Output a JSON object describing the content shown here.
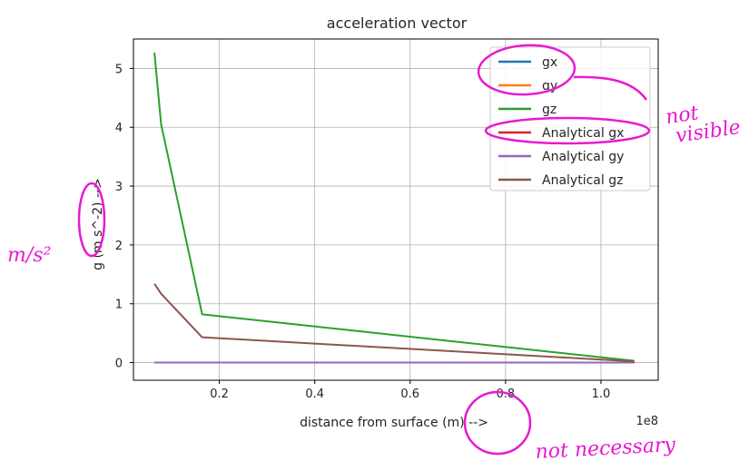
{
  "chart_data": {
    "type": "line",
    "title": "acceleration vector",
    "xlabel": "distance from surface (m) -->",
    "ylabel": "g (m s^-2) -->",
    "x_offset_label": "1e8",
    "xlim": [
      0.02,
      1.12
    ],
    "ylim": [
      -0.3,
      5.5
    ],
    "x_scale_factor": 100000000,
    "xticks": [
      0.2,
      0.4,
      0.6,
      0.8,
      1.0
    ],
    "xtick_labels": [
      "0.2",
      "0.4",
      "0.6",
      "0.8",
      "1.0"
    ],
    "yticks": [
      0,
      1,
      2,
      3,
      4,
      5
    ],
    "ytick_labels": [
      "0",
      "1",
      "2",
      "3",
      "4",
      "5"
    ],
    "grid": true,
    "legend_position": "top-right",
    "series": [
      {
        "name": "gx",
        "color": "#1f77b4",
        "x": [
          0.064,
          1.07
        ],
        "y": [
          0,
          0
        ]
      },
      {
        "name": "gy",
        "color": "#ff7f0e",
        "x": [
          0.064,
          1.07
        ],
        "y": [
          0,
          0
        ]
      },
      {
        "name": "gz",
        "color": "#2ca02c",
        "x": [
          0.064,
          0.078,
          0.164,
          1.07
        ],
        "y": [
          5.27,
          4.05,
          0.82,
          0.03
        ]
      },
      {
        "name": "Analytical gx",
        "color": "#d62728",
        "x": [
          0.064,
          1.07
        ],
        "y": [
          0,
          0
        ]
      },
      {
        "name": "Analytical gy",
        "color": "#9467bd",
        "x": [
          0.064,
          1.07
        ],
        "y": [
          0,
          0
        ]
      },
      {
        "name": "Analytical gz",
        "color": "#8c564b",
        "x": [
          0.064,
          0.078,
          0.164,
          1.07
        ],
        "y": [
          1.34,
          1.17,
          0.43,
          0.02
        ]
      }
    ]
  },
  "annotations": {
    "legend_note": "not visible",
    "ylabel_note": "m/s²",
    "xlabel_note": "not necessary",
    "color": "#e81ad0"
  }
}
